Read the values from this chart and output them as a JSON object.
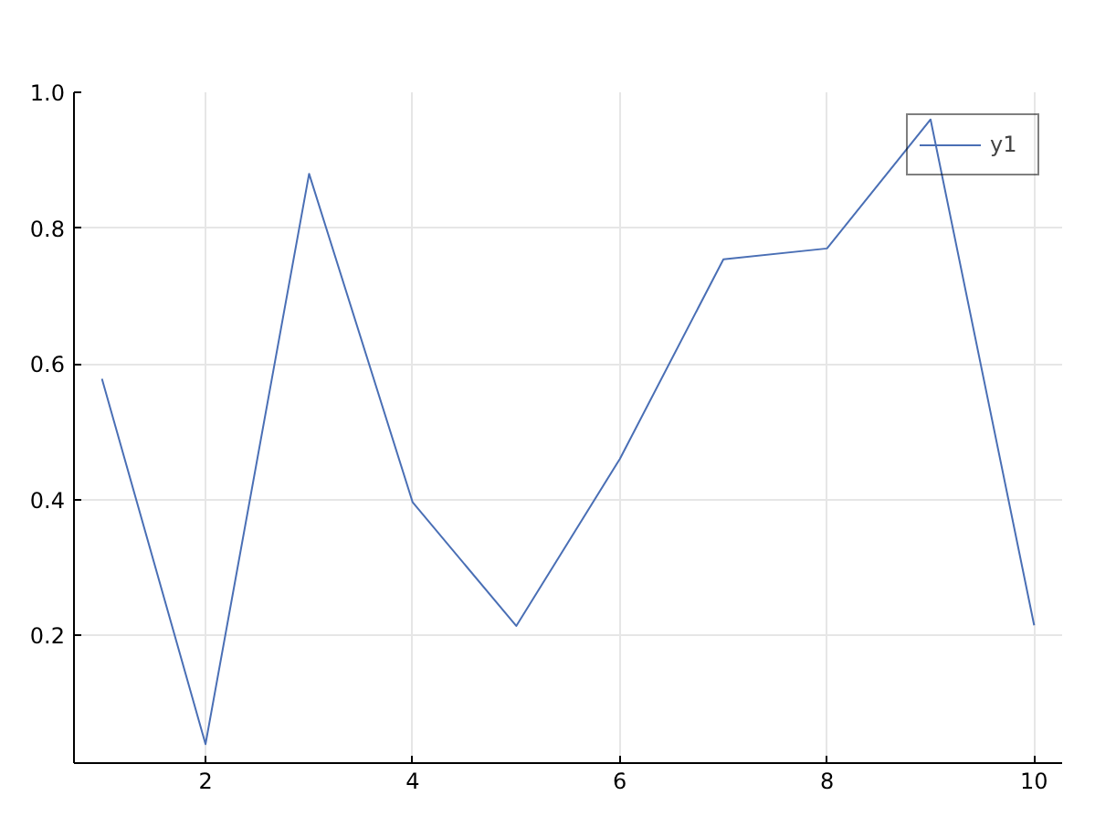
{
  "chart_data": {
    "type": "line",
    "x": [
      1,
      2,
      3,
      4,
      5,
      6,
      7,
      8,
      9,
      10
    ],
    "series": [
      {
        "name": "y1",
        "color": "#4a6fb5",
        "values": [
          0.578,
          0.04,
          0.88,
          0.396,
          0.214,
          0.46,
          0.754,
          0.77,
          0.96,
          0.215
        ]
      }
    ],
    "xlim": [
      0.73,
      10.27
    ],
    "xticks": [
      2,
      4,
      6,
      8,
      10
    ],
    "ylim": [
      0.012,
      1.0
    ],
    "yticks": [
      0.2,
      0.4,
      0.6,
      0.8,
      {
        "value": 1.0,
        "label": "1.0"
      }
    ],
    "grid": true,
    "legend": "top right",
    "marker": "none",
    "line_style": "solid"
  }
}
